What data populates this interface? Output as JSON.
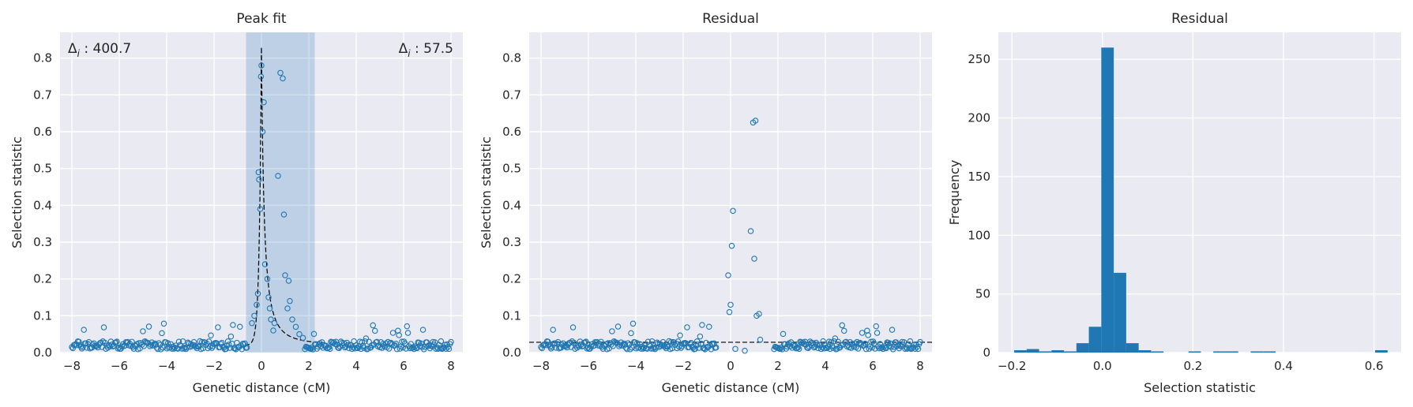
{
  "chart_data": [
    {
      "type": "scatter",
      "title": "Peak fit",
      "xlabel": "Genetic distance (cM)",
      "ylabel": "Selection statistic",
      "xlim": [
        -8.5,
        8.5
      ],
      "ylim": [
        0,
        0.87
      ],
      "xticks": [
        -8,
        -6,
        -4,
        -2,
        0,
        2,
        4,
        6,
        8
      ],
      "yticks": [
        0.0,
        0.1,
        0.2,
        0.3,
        0.4,
        0.5,
        0.6,
        0.7,
        0.8
      ],
      "grid": true,
      "annotations": [
        {
          "text": "Δi : 400.7",
          "position": "top-left"
        },
        {
          "text": "Δi : 57.5",
          "position": "top-right"
        }
      ],
      "shaded_region": [
        -0.65,
        2.25
      ],
      "fit_curve": {
        "style": "dashed",
        "color": "#000000",
        "peak_x": 0.0,
        "peak_y": 0.83,
        "baseline": 0.02
      },
      "point_color": "#1f77b4",
      "points": {
        "peak": [
          [
            -0.15,
            0.16
          ],
          [
            -0.12,
            0.49
          ],
          [
            -0.1,
            0.47
          ],
          [
            -0.05,
            0.39
          ],
          [
            -0.02,
            0.75
          ],
          [
            0.0,
            0.78
          ],
          [
            0.05,
            0.6
          ],
          [
            0.1,
            0.68
          ],
          [
            0.15,
            0.24
          ],
          [
            0.25,
            0.2
          ],
          [
            0.3,
            0.15
          ],
          [
            0.4,
            0.09
          ],
          [
            0.5,
            0.06
          ],
          [
            0.7,
            0.48
          ],
          [
            0.8,
            0.76
          ],
          [
            0.9,
            0.745
          ],
          [
            0.95,
            0.375
          ],
          [
            1.0,
            0.21
          ],
          [
            1.15,
            0.195
          ],
          [
            1.2,
            0.14
          ],
          [
            1.3,
            0.09
          ],
          [
            1.45,
            0.07
          ],
          [
            1.6,
            0.05
          ],
          [
            -0.4,
            0.08
          ],
          [
            -0.3,
            0.1
          ],
          [
            -0.2,
            0.13
          ],
          [
            0.35,
            0.12
          ],
          [
            0.55,
            0.08
          ],
          [
            1.1,
            0.12
          ],
          [
            1.75,
            0.04
          ]
        ],
        "baseline_points": 380,
        "baseline_level": 0.025
      }
    },
    {
      "type": "scatter",
      "title": "Residual",
      "xlabel": "Genetic distance (cM)",
      "ylabel": "Selection statistic",
      "xlim": [
        -8.5,
        8.5
      ],
      "ylim": [
        0,
        0.87
      ],
      "xticks": [
        -8,
        -6,
        -4,
        -2,
        0,
        2,
        4,
        6,
        8
      ],
      "yticks": [
        0.0,
        0.1,
        0.2,
        0.3,
        0.4,
        0.5,
        0.6,
        0.7,
        0.8
      ],
      "grid": true,
      "hline": {
        "y": 0.028,
        "style": "dashed",
        "color": "#000000"
      },
      "points": {
        "highlighted": [
          [
            -0.1,
            0.21
          ],
          [
            -0.05,
            0.11
          ],
          [
            0.0,
            0.13
          ],
          [
            0.05,
            0.29
          ],
          [
            0.1,
            0.385
          ],
          [
            0.85,
            0.33
          ],
          [
            0.95,
            0.625
          ],
          [
            1.05,
            0.63
          ],
          [
            1.0,
            0.255
          ],
          [
            1.1,
            0.1
          ],
          [
            1.2,
            0.105
          ],
          [
            1.25,
            0.035
          ],
          [
            0.2,
            0.01
          ],
          [
            0.6,
            0.005
          ]
        ]
      }
    },
    {
      "type": "bar",
      "title": "Residual",
      "xlabel": "Selection statistic",
      "ylabel": "Frequency",
      "xlim": [
        -0.23,
        0.66
      ],
      "ylim": [
        0,
        273
      ],
      "xticks": [
        -0.2,
        0.0,
        0.2,
        0.4,
        0.6
      ],
      "yticks": [
        0,
        50,
        100,
        150,
        200,
        250
      ],
      "grid": true,
      "bin_width": 0.0275,
      "bins": [
        {
          "x0": -0.195,
          "count": 2
        },
        {
          "x0": -0.1675,
          "count": 3
        },
        {
          "x0": -0.14,
          "count": 1
        },
        {
          "x0": -0.1125,
          "count": 2
        },
        {
          "x0": -0.085,
          "count": 1
        },
        {
          "x0": -0.0575,
          "count": 8
        },
        {
          "x0": -0.03,
          "count": 22
        },
        {
          "x0": -0.0025,
          "count": 260
        },
        {
          "x0": 0.025,
          "count": 68
        },
        {
          "x0": 0.0525,
          "count": 8
        },
        {
          "x0": 0.08,
          "count": 2
        },
        {
          "x0": 0.1075,
          "count": 1
        },
        {
          "x0": 0.19,
          "count": 1
        },
        {
          "x0": 0.245,
          "count": 1
        },
        {
          "x0": 0.2725,
          "count": 1
        },
        {
          "x0": 0.3275,
          "count": 1
        },
        {
          "x0": 0.355,
          "count": 1
        },
        {
          "x0": 0.6025,
          "count": 2
        }
      ],
      "bar_color": "#1f77b4"
    }
  ]
}
